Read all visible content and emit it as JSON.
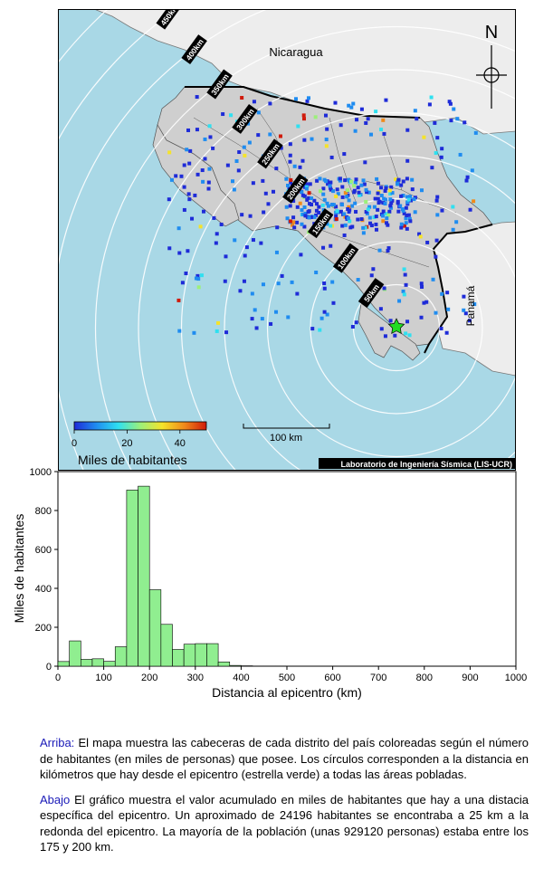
{
  "map": {
    "country_labels": {
      "north": "Nicaragua",
      "south": "Panamá"
    },
    "north_label": "N",
    "distance_rings_km": [
      50,
      100,
      150,
      200,
      250,
      300,
      350,
      400,
      450,
      500
    ],
    "ring_label_suffix": "km",
    "scale_bar_label": "100 km",
    "colorbar": {
      "title": "Miles de habitantes",
      "ticks": [
        "0",
        "20",
        "40"
      ],
      "min": 0,
      "max": 50,
      "colors": [
        "#1e2bd8",
        "#1f8cf0",
        "#2fe0f0",
        "#9cf07a",
        "#f5e32a",
        "#f08a1a",
        "#d01a0a"
      ]
    },
    "credit": "Laboratorio de Ingeniería Sísmica (LIS-UCR)",
    "colors": {
      "sea": "#a9d8e6",
      "land": "#cfcfcf",
      "neighbor_land": "#ededed",
      "epicenter": "#22dd22"
    }
  },
  "chart_data": {
    "type": "bar",
    "ylabel": "Miles de habitantes",
    "xlabel": "Distancia al epicentro (km)",
    "xlim": [
      0,
      1000
    ],
    "ylim": [
      0,
      1000
    ],
    "xticks": [
      0,
      100,
      200,
      300,
      400,
      500,
      600,
      700,
      800,
      900,
      1000
    ],
    "yticks": [
      0,
      200,
      400,
      600,
      800,
      1000
    ],
    "bin_width": 25,
    "bins_start": [
      0,
      25,
      50,
      75,
      100,
      125,
      150,
      175,
      200,
      225,
      250,
      275,
      300,
      325,
      350,
      375,
      400,
      425,
      450,
      475
    ],
    "values": [
      24,
      130,
      35,
      38,
      25,
      100,
      905,
      925,
      393,
      215,
      86,
      113,
      116,
      116,
      22,
      4,
      2,
      1,
      1,
      1
    ],
    "bar_color": "#90ee90"
  },
  "caption": {
    "p1_head": "Arriba:",
    "p1_text": " El mapa muestra las cabeceras de cada distrito del país coloreadas según el número de habitantes (en miles de personas) que posee.  Los círculos corresponden a la distancia en kilómetros que hay desde el epicentro (estrella verde) a todas las áreas pobladas.",
    "p2_head": "Abajo",
    "p2_text": " El gráfico muestra el valor acumulado en miles de habitantes que hay a una distacia específica del epicentro.  Un aproximado de 24196 habitantes se encontraba a 25 km a la redonda del epicentro.  La mayoría de la población (unas 929120 personas) estaba entre los 175 y 200 km."
  }
}
